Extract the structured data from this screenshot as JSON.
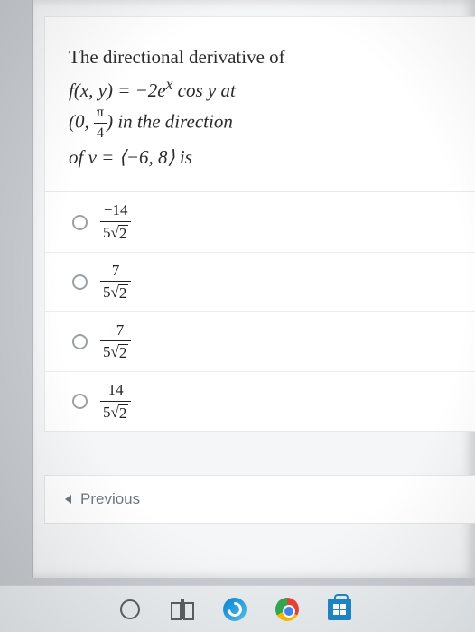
{
  "question": {
    "line1_prefix": "The directional derivative of",
    "func_lhs": "f(x, y) = ",
    "func_rhs": "−2e",
    "func_exp": "x",
    "func_tail": " cos y at",
    "point_open": "(0, ",
    "point_frac_num": "π",
    "point_frac_den": "4",
    "point_close": ") in the direction",
    "of_v": "of v = ⟨−6, 8⟩  is"
  },
  "options": [
    {
      "num": "−14",
      "den_coeff": "5",
      "den_rad": "2"
    },
    {
      "num": "7",
      "den_coeff": "5",
      "den_rad": "2"
    },
    {
      "num": "−7",
      "den_coeff": "5",
      "den_rad": "2"
    },
    {
      "num": "14",
      "den_coeff": "5",
      "den_rad": "2"
    }
  ],
  "nav": {
    "previous": "Previous"
  },
  "colors": {
    "page_bg": "#c8ccd0",
    "card_bg": "#ffffff",
    "panel_bg": "#f5f6f7",
    "text": "#2b2b2b",
    "muted": "#6f7780",
    "divider": "#eceded"
  }
}
